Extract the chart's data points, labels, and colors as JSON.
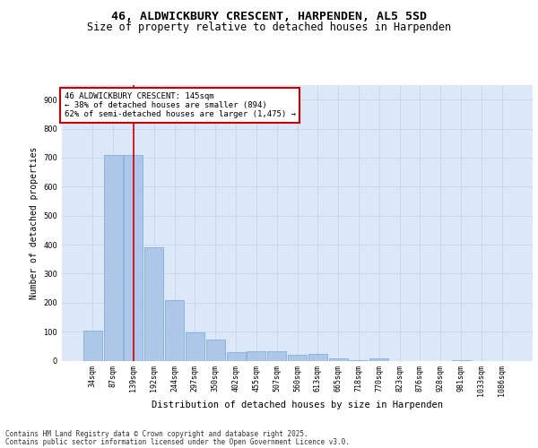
{
  "title_line1": "46, ALDWICKBURY CRESCENT, HARPENDEN, AL5 5SD",
  "title_line2": "Size of property relative to detached houses in Harpenden",
  "xlabel": "Distribution of detached houses by size in Harpenden",
  "ylabel": "Number of detached properties",
  "categories": [
    "34sqm",
    "87sqm",
    "139sqm",
    "192sqm",
    "244sqm",
    "297sqm",
    "350sqm",
    "402sqm",
    "455sqm",
    "507sqm",
    "560sqm",
    "613sqm",
    "665sqm",
    "718sqm",
    "770sqm",
    "823sqm",
    "876sqm",
    "928sqm",
    "981sqm",
    "1033sqm",
    "1086sqm"
  ],
  "values": [
    103,
    710,
    710,
    390,
    208,
    98,
    73,
    30,
    33,
    33,
    20,
    22,
    8,
    3,
    8,
    0,
    0,
    0,
    3,
    0,
    0
  ],
  "bar_color": "#aec6e8",
  "bar_edge_color": "#5a9fd4",
  "red_line_index": 2,
  "annotation_text": "46 ALDWICKBURY CRESCENT: 145sqm\n← 38% of detached houses are smaller (894)\n62% of semi-detached houses are larger (1,475) →",
  "annotation_box_color": "#ffffff",
  "annotation_box_edge_color": "#cc0000",
  "property_line_color": "#cc0000",
  "grid_color": "#c8d4e8",
  "background_color": "#dce8f8",
  "ylim": [
    0,
    950
  ],
  "yticks": [
    0,
    100,
    200,
    300,
    400,
    500,
    600,
    700,
    800,
    900
  ],
  "footer_line1": "Contains HM Land Registry data © Crown copyright and database right 2025.",
  "footer_line2": "Contains public sector information licensed under the Open Government Licence v3.0.",
  "title_fontsize": 9.5,
  "subtitle_fontsize": 8.5,
  "axis_label_fontsize": 7,
  "tick_fontsize": 6,
  "annotation_fontsize": 6.5,
  "footer_fontsize": 5.5
}
